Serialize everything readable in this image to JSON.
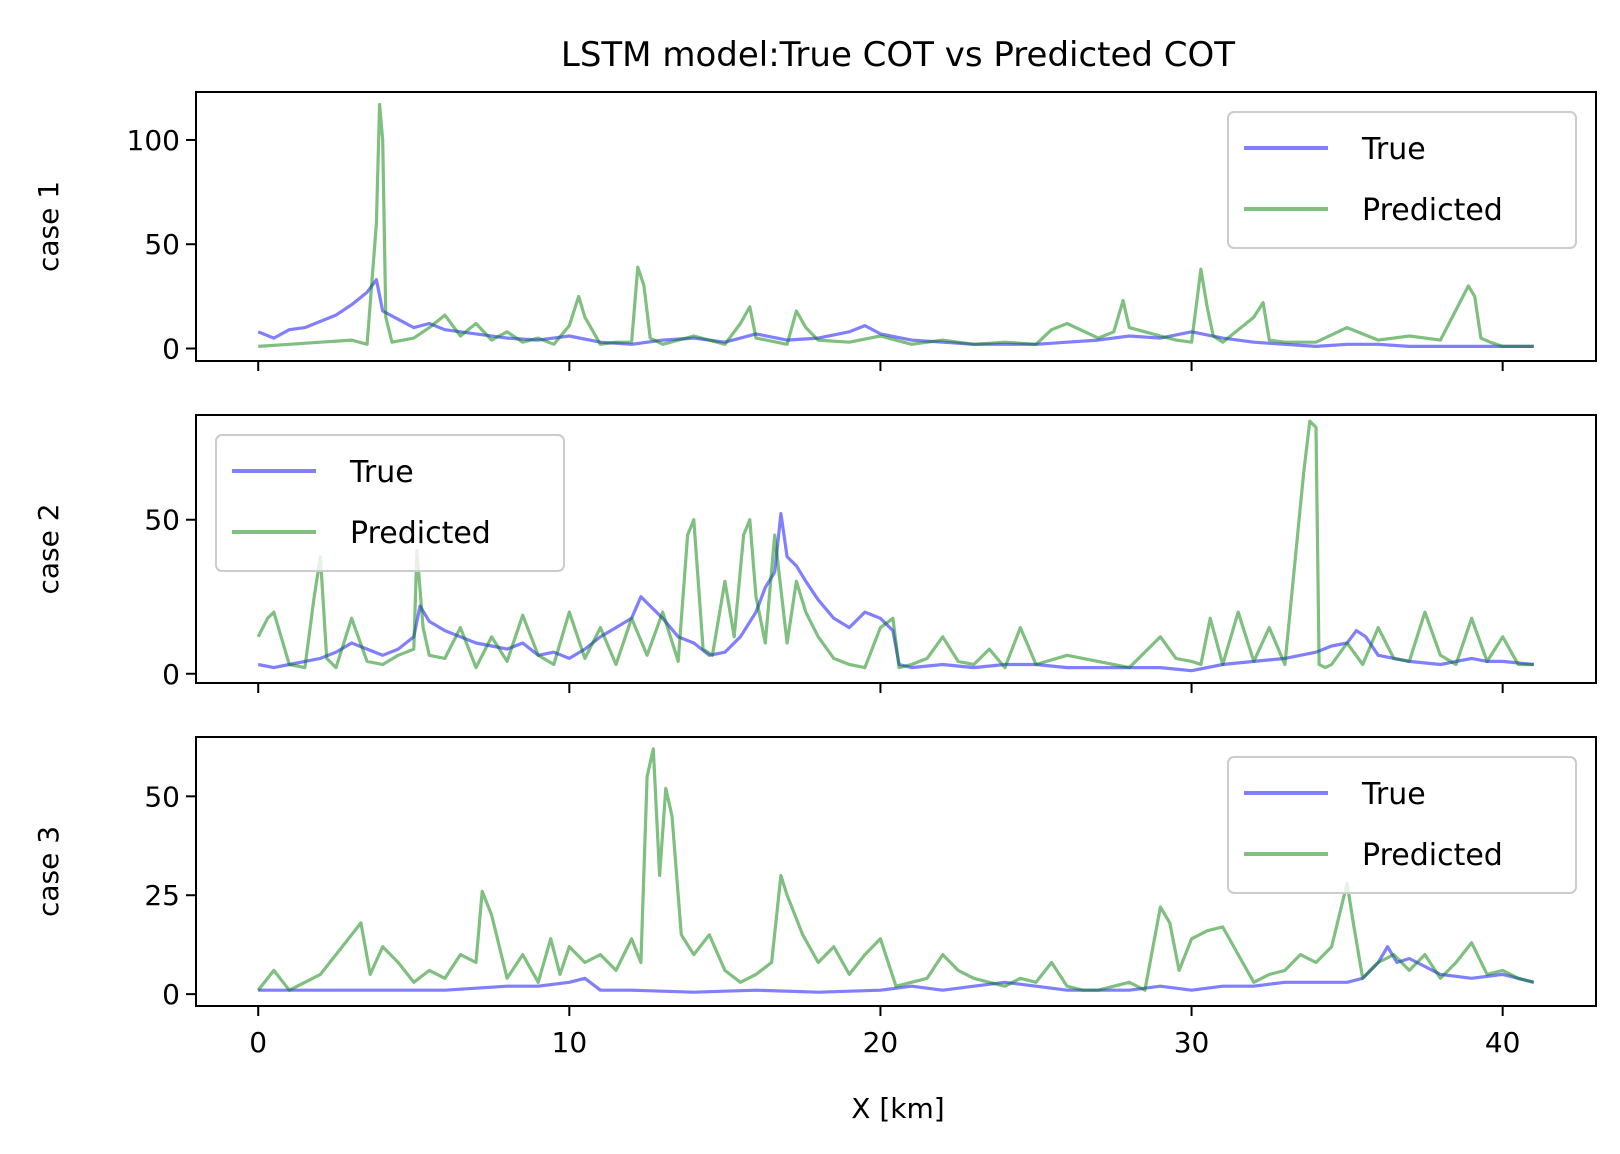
{
  "figure": {
    "title": "LSTM model:True COT vs Predicted COT",
    "xlabel": "X [km]"
  },
  "colors": {
    "true": "#0000ff",
    "predicted": "#008000",
    "axis": "#000000",
    "legend_border": "#cccccc"
  },
  "chart_data": [
    {
      "type": "line",
      "ylabel": "case 1",
      "xlim": [
        -2,
        43
      ],
      "ylim": [
        -6,
        123
      ],
      "yticks": [
        0,
        50,
        100
      ],
      "xticks": [
        0,
        10,
        20,
        30,
        40
      ],
      "show_xtick_labels": false,
      "legend": "upper right",
      "series": [
        {
          "name": "True",
          "x": [
            0,
            0.5,
            1,
            1.5,
            2,
            2.5,
            3,
            3.5,
            3.8,
            4,
            4.5,
            5,
            5.5,
            6,
            7,
            8,
            9,
            10,
            11,
            12,
            13,
            14,
            15,
            16,
            17,
            18,
            19,
            19.5,
            20,
            21,
            22,
            23,
            24,
            25,
            26,
            27,
            28,
            29,
            30,
            31,
            32,
            33,
            34,
            35,
            36,
            37,
            38,
            39,
            40,
            41
          ],
          "y": [
            8,
            5,
            9,
            10,
            13,
            16,
            21,
            27,
            33,
            18,
            14,
            10,
            12,
            9,
            7,
            5,
            4,
            6,
            3,
            2,
            4,
            5,
            3,
            7,
            4,
            5,
            8,
            11,
            7,
            4,
            3,
            2,
            2,
            2,
            3,
            4,
            6,
            5,
            8,
            5,
            3,
            2,
            1,
            2,
            2,
            1,
            1,
            1,
            1,
            1
          ]
        },
        {
          "name": "Predicted",
          "x": [
            0,
            1,
            2,
            3,
            3.5,
            3.8,
            3.9,
            4,
            4.1,
            4.3,
            5,
            5.5,
            6,
            6.5,
            7,
            7.5,
            8,
            8.5,
            9,
            9.5,
            10,
            10.3,
            10.5,
            11,
            11.5,
            12,
            12.2,
            12.4,
            12.6,
            13,
            14,
            15,
            15.5,
            15.8,
            16,
            17,
            17.3,
            17.6,
            18,
            19,
            20,
            21,
            22,
            23,
            24,
            25,
            25.5,
            26,
            27,
            27.5,
            27.8,
            28,
            29,
            29.5,
            30,
            30.3,
            30.5,
            30.7,
            31,
            32,
            32.3,
            32.5,
            33,
            34,
            35,
            36,
            37,
            38,
            38.9,
            39.1,
            39.3,
            39.6,
            40,
            41
          ],
          "y": [
            1,
            2,
            3,
            4,
            2,
            60,
            117,
            100,
            15,
            3,
            5,
            10,
            16,
            6,
            12,
            4,
            8,
            3,
            5,
            2,
            11,
            25,
            15,
            2,
            3,
            3,
            39,
            30,
            5,
            2,
            6,
            2,
            12,
            20,
            5,
            2,
            18,
            10,
            4,
            3,
            6,
            2,
            4,
            2,
            3,
            2,
            9,
            12,
            5,
            8,
            23,
            10,
            6,
            4,
            3,
            38,
            20,
            6,
            3,
            15,
            22,
            4,
            3,
            3,
            10,
            4,
            6,
            4,
            30,
            25,
            5,
            3,
            1,
            1
          ]
        }
      ]
    },
    {
      "type": "line",
      "ylabel": "case 2",
      "xlim": [
        -2,
        43
      ],
      "ylim": [
        -3,
        84
      ],
      "yticks": [
        0,
        50
      ],
      "xticks": [
        0,
        10,
        20,
        30,
        40
      ],
      "show_xtick_labels": false,
      "legend": "upper left",
      "series": [
        {
          "name": "True",
          "x": [
            0,
            0.5,
            1,
            1.5,
            2,
            2.5,
            3,
            3.5,
            4,
            4.5,
            5,
            5.2,
            5.5,
            6,
            6.5,
            7,
            7.5,
            8,
            8.5,
            9,
            9.5,
            10,
            10.5,
            11,
            11.5,
            12,
            12.3,
            12.6,
            13,
            13.5,
            14,
            14.5,
            15,
            15.5,
            16,
            16.3,
            16.6,
            16.8,
            17,
            17.3,
            17.6,
            18,
            18.5,
            19,
            19.5,
            20,
            20.4,
            20.6,
            21,
            22,
            23,
            24,
            25,
            26,
            27,
            28,
            29,
            30,
            31,
            32,
            33,
            34,
            34.5,
            35,
            35.3,
            35.6,
            36,
            37,
            38,
            39,
            39.5,
            40,
            41
          ],
          "y": [
            3,
            2,
            3,
            4,
            5,
            7,
            10,
            8,
            6,
            8,
            12,
            22,
            17,
            14,
            12,
            10,
            9,
            8,
            10,
            6,
            7,
            5,
            8,
            12,
            15,
            18,
            25,
            22,
            18,
            12,
            10,
            6,
            7,
            12,
            20,
            28,
            33,
            52,
            38,
            35,
            30,
            24,
            18,
            15,
            20,
            18,
            14,
            3,
            2,
            3,
            2,
            3,
            3,
            2,
            2,
            2,
            2,
            1,
            3,
            4,
            5,
            7,
            9,
            10,
            14,
            12,
            6,
            4,
            3,
            5,
            4,
            4,
            3
          ]
        },
        {
          "name": "Predicted",
          "x": [
            0,
            0.3,
            0.5,
            1,
            1.5,
            1.8,
            2,
            2.2,
            2.5,
            3,
            3.5,
            4,
            4.5,
            5,
            5.1,
            5.3,
            5.5,
            6,
            6.5,
            7,
            7.5,
            8,
            8.5,
            9,
            9.5,
            10,
            10.5,
            11,
            11.5,
            12,
            12.5,
            13,
            13.5,
            13.8,
            14,
            14.3,
            14.6,
            15,
            15.3,
            15.6,
            15.8,
            16,
            16.3,
            16.6,
            17,
            17.3,
            17.6,
            18,
            18.5,
            19,
            19.5,
            20,
            20.4,
            20.6,
            21,
            21.5,
            22,
            22.5,
            23,
            23.5,
            24,
            24.5,
            25,
            26,
            27,
            28,
            29,
            29.5,
            30,
            30.3,
            30.6,
            31,
            31.5,
            32,
            32.5,
            33,
            33.6,
            33.8,
            34,
            34.1,
            34.3,
            34.5,
            35,
            35.5,
            36,
            36.5,
            37,
            37.5,
            38,
            38.5,
            39,
            39.5,
            40,
            40.5,
            41
          ],
          "y": [
            12,
            18,
            20,
            3,
            2,
            25,
            38,
            5,
            2,
            18,
            4,
            3,
            6,
            8,
            40,
            15,
            6,
            5,
            15,
            2,
            12,
            4,
            19,
            6,
            3,
            20,
            5,
            15,
            3,
            18,
            6,
            20,
            4,
            45,
            50,
            8,
            6,
            30,
            12,
            45,
            50,
            25,
            10,
            45,
            10,
            30,
            20,
            12,
            5,
            3,
            2,
            15,
            18,
            2,
            3,
            5,
            12,
            4,
            3,
            8,
            2,
            15,
            3,
            6,
            4,
            2,
            12,
            5,
            4,
            3,
            18,
            3,
            20,
            4,
            15,
            3,
            65,
            82,
            80,
            3,
            2,
            3,
            10,
            3,
            15,
            5,
            4,
            20,
            6,
            3,
            18,
            4,
            12,
            3,
            3
          ]
        }
      ]
    },
    {
      "type": "line",
      "ylabel": "case 3",
      "xlim": [
        -2,
        43
      ],
      "ylim": [
        -3,
        65
      ],
      "yticks": [
        0,
        25,
        50
      ],
      "xticks": [
        0,
        10,
        20,
        30,
        40
      ],
      "show_xtick_labels": true,
      "legend": "upper right",
      "series": [
        {
          "name": "True",
          "x": [
            0,
            2,
            4,
            6,
            8,
            9,
            10,
            10.5,
            11,
            12,
            14,
            16,
            18,
            20,
            21,
            22,
            23,
            24,
            25,
            26,
            27,
            28,
            29,
            30,
            31,
            32,
            33,
            34,
            35,
            35.5,
            36,
            36.3,
            36.6,
            37,
            38,
            39,
            40,
            41
          ],
          "y": [
            1,
            1,
            1,
            1,
            2,
            2,
            3,
            4,
            1,
            1,
            0.5,
            1,
            0.5,
            1,
            2,
            1,
            2,
            3,
            2,
            1,
            1,
            1,
            2,
            1,
            2,
            2,
            3,
            3,
            3,
            4,
            8,
            12,
            8,
            9,
            5,
            4,
            5,
            3
          ]
        },
        {
          "name": "Predicted",
          "x": [
            0,
            0.5,
            1,
            1.5,
            2,
            2.5,
            3,
            3.3,
            3.6,
            4,
            4.5,
            5,
            5.5,
            6,
            6.5,
            7,
            7.2,
            7.5,
            8,
            8.5,
            9,
            9.4,
            9.7,
            10,
            10.5,
            11,
            11.5,
            12,
            12.3,
            12.5,
            12.7,
            12.9,
            13.1,
            13.3,
            13.6,
            14,
            14.5,
            15,
            15.5,
            16,
            16.5,
            16.8,
            17,
            17.5,
            18,
            18.5,
            19,
            19.5,
            20,
            20.5,
            21,
            21.5,
            22,
            22.5,
            23,
            23.5,
            24,
            24.5,
            25,
            25.5,
            26,
            26.5,
            27,
            27.5,
            28,
            28.5,
            29,
            29.3,
            29.6,
            30,
            30.5,
            31,
            31.5,
            32,
            32.5,
            33,
            33.5,
            34,
            34.5,
            35,
            35.2,
            35.5,
            36,
            36.5,
            37,
            37.5,
            38,
            38.5,
            39,
            39.5,
            40,
            40.5,
            41
          ],
          "y": [
            1,
            6,
            1,
            3,
            5,
            10,
            15,
            18,
            5,
            12,
            8,
            3,
            6,
            4,
            10,
            8,
            26,
            20,
            4,
            10,
            3,
            14,
            5,
            12,
            8,
            10,
            6,
            14,
            8,
            55,
            62,
            30,
            52,
            45,
            15,
            10,
            15,
            6,
            3,
            5,
            8,
            30,
            25,
            15,
            8,
            12,
            5,
            10,
            14,
            2,
            3,
            4,
            10,
            6,
            4,
            3,
            2,
            4,
            3,
            8,
            2,
            1,
            1,
            2,
            3,
            1,
            22,
            18,
            6,
            14,
            16,
            17,
            10,
            3,
            5,
            6,
            10,
            8,
            12,
            28,
            18,
            4,
            8,
            10,
            6,
            10,
            4,
            8,
            13,
            5,
            6,
            4,
            3
          ]
        }
      ]
    }
  ]
}
